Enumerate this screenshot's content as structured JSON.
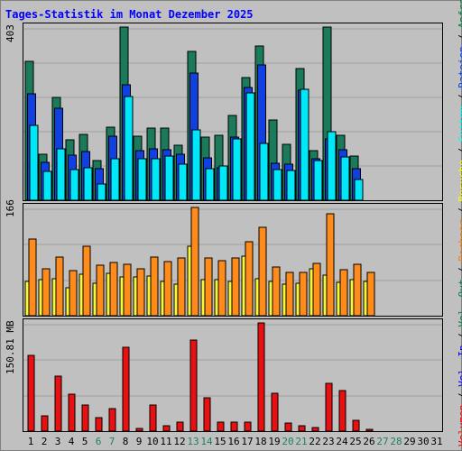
{
  "title": "Tages-Statistik im Monat Dezember 2025",
  "max_labels": {
    "top": "403",
    "middle": "166",
    "bottom": "150.81 MB"
  },
  "right_legend": [
    {
      "text": "Volumen",
      "color": "#ff0000"
    },
    {
      "text": " / ",
      "color": "#000000"
    },
    {
      "text": "Vol. In",
      "color": "#0000ff"
    },
    {
      "text": " / ",
      "color": "#000000"
    },
    {
      "text": "Vol. Out",
      "color": "#008040"
    },
    {
      "text": " / ",
      "color": "#000000"
    },
    {
      "text": "Rechner",
      "color": "#ff8000"
    },
    {
      "text": " / ",
      "color": "#000000"
    },
    {
      "text": "Besuche",
      "color": "#ffff00"
    },
    {
      "text": " / ",
      "color": "#000000"
    },
    {
      "text": "Seiten",
      "color": "#00ffff"
    },
    {
      "text": " / ",
      "color": "#000000"
    },
    {
      "text": "Dateien",
      "color": "#0040ff"
    },
    {
      "text": " / ",
      "color": "#000000"
    },
    {
      "text": "Anfragen",
      "color": "#008040"
    }
  ],
  "colors": {
    "anfragen": "#1a7a5a",
    "dateien": "#1040e0",
    "seiten": "#00e8f8",
    "besuche": "#f8f838",
    "rechner": "#ff8c1a",
    "volumen": "#e81010",
    "weekday_label": "#000000",
    "weekend_label": "#208060"
  },
  "chart_data": [
    {
      "type": "bar",
      "title": "Tages-Statistik im Monat Dezember 2025",
      "ylabel": "403",
      "ylim": [
        0,
        403
      ],
      "categories": [
        "1",
        "2",
        "3",
        "4",
        "5",
        "6",
        "7",
        "8",
        "9",
        "10",
        "11",
        "12",
        "13",
        "14",
        "15",
        "16",
        "17",
        "18",
        "19",
        "20",
        "21",
        "22",
        "23",
        "24",
        "25",
        "26",
        "27",
        "28",
        "29",
        "30",
        "31"
      ],
      "series": [
        {
          "name": "Anfragen",
          "values": [
            323,
            107,
            239,
            140,
            153,
            92,
            170,
            403,
            149,
            168,
            168,
            127,
            347,
            147,
            151,
            198,
            285,
            358,
            186,
            131,
            307,
            116,
            403,
            152,
            103,
            0,
            0,
            0,
            0,
            0,
            0
          ]
        },
        {
          "name": "Dateien",
          "values": [
            248,
            88,
            215,
            104,
            113,
            74,
            149,
            268,
            115,
            119,
            117,
            107,
            297,
            98,
            75,
            147,
            262,
            315,
            87,
            85,
            257,
            96,
            142,
            118,
            74,
            0,
            0,
            0,
            0,
            0,
            0
          ]
        },
        {
          "name": "Seiten",
          "values": [
            175,
            67,
            119,
            72,
            76,
            37,
            97,
            242,
            96,
            97,
            102,
            84,
            163,
            74,
            79,
            143,
            250,
            133,
            72,
            69,
            259,
            92,
            159,
            100,
            48,
            0,
            0,
            0,
            0,
            0,
            0
          ]
        }
      ]
    },
    {
      "type": "bar",
      "ylabel": "166",
      "ylim": [
        0,
        166
      ],
      "categories": [
        "1",
        "2",
        "3",
        "4",
        "5",
        "6",
        "7",
        "8",
        "9",
        "10",
        "11",
        "12",
        "13",
        "14",
        "15",
        "16",
        "17",
        "18",
        "19",
        "20",
        "21",
        "22",
        "23",
        "24",
        "25",
        "26",
        "27",
        "28",
        "29",
        "30",
        "31"
      ],
      "series": [
        {
          "name": "Besuche",
          "values": [
            53,
            55,
            57,
            43,
            64,
            50,
            65,
            59,
            60,
            61,
            53,
            49,
            107,
            55,
            56,
            53,
            91,
            57,
            53,
            48,
            50,
            72,
            62,
            51,
            55,
            53,
            0,
            0,
            0,
            0,
            0
          ]
        },
        {
          "name": "Rechner",
          "values": [
            117,
            72,
            90,
            69,
            106,
            77,
            81,
            79,
            72,
            90,
            83,
            88,
            166,
            88,
            85,
            88,
            114,
            136,
            75,
            66,
            66,
            80,
            156,
            70,
            79,
            66,
            0,
            0,
            0,
            0,
            0
          ]
        }
      ]
    },
    {
      "type": "bar",
      "ylabel": "150.81 MB",
      "ylim": [
        0,
        150.81
      ],
      "categories": [
        "1",
        "2",
        "3",
        "4",
        "5",
        "6",
        "7",
        "8",
        "9",
        "10",
        "11",
        "12",
        "13",
        "14",
        "15",
        "16",
        "17",
        "18",
        "19",
        "20",
        "21",
        "22",
        "23",
        "24",
        "25",
        "26",
        "27",
        "28",
        "29",
        "30",
        "31"
      ],
      "series": [
        {
          "name": "Volumen",
          "values": [
            106,
            21,
            77,
            51,
            37,
            19,
            31,
            117,
            4,
            37,
            8,
            12,
            127,
            47,
            13,
            13,
            12,
            150.81,
            53,
            11,
            7,
            5,
            67,
            56,
            15,
            3,
            0,
            0,
            0,
            0,
            0
          ]
        }
      ]
    }
  ],
  "x_labels": [
    {
      "text": "1",
      "weekend": false
    },
    {
      "text": "2",
      "weekend": false
    },
    {
      "text": "3",
      "weekend": false
    },
    {
      "text": "4",
      "weekend": false
    },
    {
      "text": "5",
      "weekend": false
    },
    {
      "text": "6",
      "weekend": true
    },
    {
      "text": "7",
      "weekend": true
    },
    {
      "text": "8",
      "weekend": false
    },
    {
      "text": "9",
      "weekend": false
    },
    {
      "text": "10",
      "weekend": false
    },
    {
      "text": "11",
      "weekend": false
    },
    {
      "text": "12",
      "weekend": false
    },
    {
      "text": "13",
      "weekend": true
    },
    {
      "text": "14",
      "weekend": true
    },
    {
      "text": "15",
      "weekend": false
    },
    {
      "text": "16",
      "weekend": false
    },
    {
      "text": "17",
      "weekend": false
    },
    {
      "text": "18",
      "weekend": false
    },
    {
      "text": "19",
      "weekend": false
    },
    {
      "text": "20",
      "weekend": true
    },
    {
      "text": "21",
      "weekend": true
    },
    {
      "text": "22",
      "weekend": false
    },
    {
      "text": "23",
      "weekend": false
    },
    {
      "text": "24",
      "weekend": false
    },
    {
      "text": "25",
      "weekend": false
    },
    {
      "text": "26",
      "weekend": false
    },
    {
      "text": "27",
      "weekend": true
    },
    {
      "text": "28",
      "weekend": true
    },
    {
      "text": "29",
      "weekend": false
    },
    {
      "text": "30",
      "weekend": false
    },
    {
      "text": "31",
      "weekend": false
    }
  ]
}
